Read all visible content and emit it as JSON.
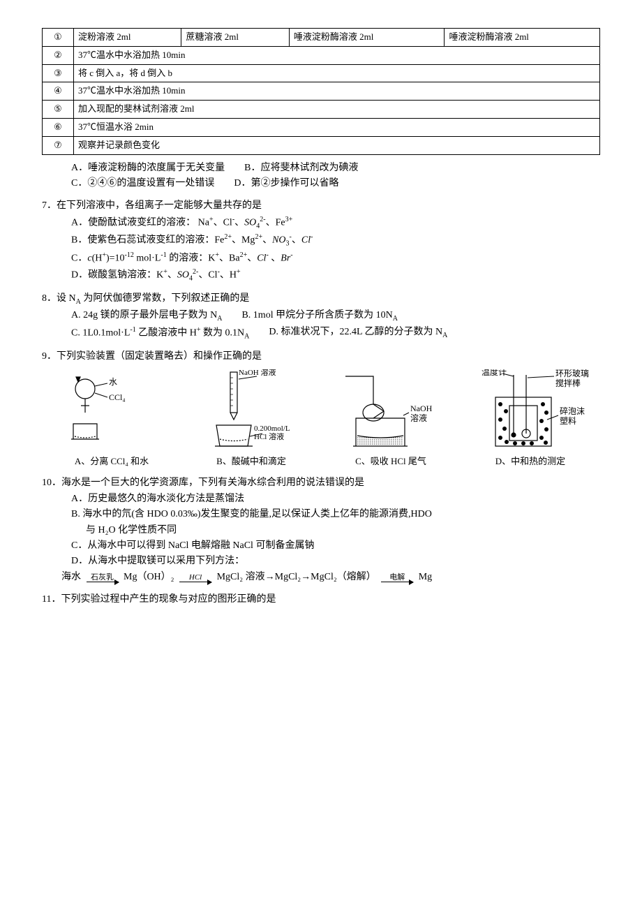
{
  "table": {
    "rows": [
      {
        "num": "①",
        "cells": [
          "淀粉溶液 2ml",
          "蔗糖溶液 2ml",
          "唾液淀粉酶溶液 2ml",
          "唾液淀粉酶溶液 2ml"
        ]
      },
      {
        "num": "②",
        "cells": [
          "37℃温水中水浴加热 10min"
        ],
        "span": 4
      },
      {
        "num": "③",
        "cells": [
          "将 c 倒入 a，将 d 倒入 b"
        ],
        "span": 4
      },
      {
        "num": "④",
        "cells": [
          "37℃温水中水浴加热 10min"
        ],
        "span": 4
      },
      {
        "num": "⑤",
        "cells": [
          "加入现配的斐林试剂溶液 2ml"
        ],
        "span": 4
      },
      {
        "num": "⑥",
        "cells": [
          "37℃恒温水浴 2min"
        ],
        "span": 4
      },
      {
        "num": "⑦",
        "cells": [
          "观察并记录颜色变化"
        ],
        "span": 4
      }
    ]
  },
  "q6": {
    "optA": "A．唾液淀粉酶的浓度属于无关变量",
    "optB": "B．应将斐林试剂改为碘液",
    "optC": "C．②④⑥的温度设置有一处错误",
    "optD": "D．第②步操作可以省略"
  },
  "q7": {
    "stem": "7．在下列溶液中，各组离子一定能够大量共存的是",
    "optA_pre": "A．使酚酞试液变红的溶液： Na",
    "optA_mid1": "、Cl",
    "optA_mid2": "、",
    "optA_so4": "SO",
    "optA_post": "、Fe",
    "optB_pre": "B．使紫色石蕊试液变红的溶液：Fe",
    "optB_mid1": "、Mg",
    "optB_mid2": "、",
    "optB_no3": "NO",
    "optB_post": "、",
    "optC_pre": "C．",
    "optC_c": "c",
    "optC_h": "(H",
    "optC_heq": ")=10",
    "optC_unit": " mol·L",
    "optC_mid": " 的溶液：K",
    "optC_mid2": "、Ba",
    "optC_mid3": "、",
    "optC_post": " 、",
    "optD_pre": "D．碳酸氢钠溶液：K",
    "optD_mid": "、",
    "optD_so4": "SO",
    "optD_mid2": "、Cl",
    "optD_post": "、H"
  },
  "q8": {
    "stem_pre": "8．设 N",
    "stem_post": " 为阿伏伽德罗常数，下列叙述正确的是",
    "optA_pre": "A. 24g 镁的原子最外层电子数为 N",
    "optB_pre": "B. 1mol 甲烷分子所含质子数为 10N",
    "optC_pre": "C. 1L0.1mol·L",
    "optC_mid": " 乙酸溶液中 H",
    "optC_mid2": " 数为 0.1N",
    "optD_pre": "D. 标准状况下，22.4L 乙醇的分子数为 N"
  },
  "q9": {
    "stem": "9．下列实验装置（固定装置略去）和操作正确的是",
    "labA": "A、分离 CCl₄ 和水",
    "labB": "B、酸碱中和滴定",
    "labC": "C、吸收 HCl 尾气",
    "labD": "D、中和热的测定",
    "dA_water": "水",
    "dA_ccl4": "CCl₄",
    "dB_naoh": "NaOH 溶液",
    "dB_hcl1": "0.200mol/L",
    "dB_hcl2": "HCl 溶液",
    "dC_naoh1": "NaOH",
    "dC_naoh2": "溶液",
    "dD_temp": "温度计",
    "dD_rod1": "环形玻璃",
    "dD_rod2": "搅拌棒",
    "dD_foam1": "碎泡沫",
    "dD_foam2": "塑料"
  },
  "q10": {
    "stem": "10．海水是一个巨大的化学资源库，下列有关海水综合利用的说法错误的是",
    "optA": "A．历史最悠久的海水淡化方法是蒸馏法",
    "optB": "B. 海水中的氘(含 HDO 0.03‰)发生聚变的能量,足以保证人类上亿年的能源消费,HDO",
    "optB2": "与 H₂O 化学性质不同",
    "optC": "C．从海水中可以得到 NaCl 电解熔融 NaCl 可制备金属钠",
    "optD": "D．从海水中提取镁可以采用下列方法：",
    "chain_pre": "海水",
    "chain_l1": "石灰乳",
    "chain_n1": "Mg（OH）₂",
    "chain_l2": "HCl",
    "chain_n2": "MgCl₂ 溶液→MgCl₂→MgCl₂（熔解）",
    "chain_l3": "电解",
    "chain_n3": "Mg"
  },
  "q11": {
    "stem": "11．下列实验过程中产生的现象与对应的图形正确的是"
  }
}
